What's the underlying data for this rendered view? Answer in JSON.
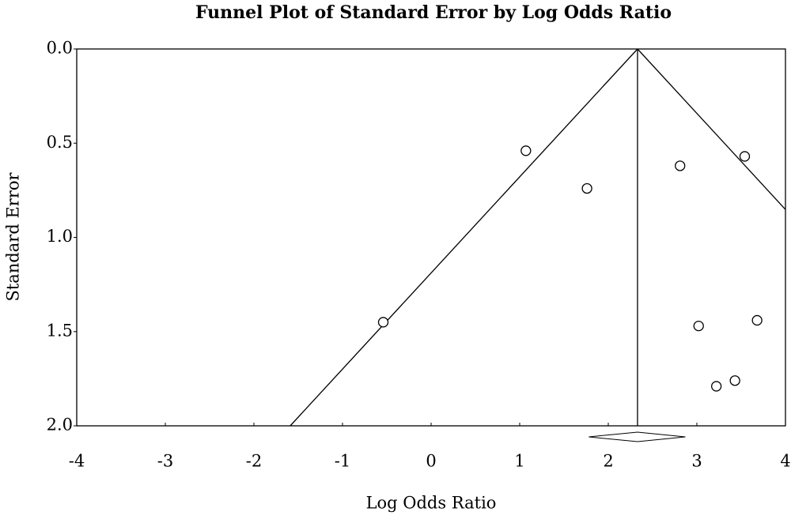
{
  "chart_data": {
    "type": "scatter",
    "title": "Funnel Plot of Standard Error by Log Odds Ratio",
    "x_label": "Log Odds Ratio",
    "y_label": "Standard Error",
    "x": [
      1.07,
      1.76,
      -0.54,
      2.81,
      3.54,
      3.02,
      3.68,
      3.22,
      3.43
    ],
    "values": [
      0.54,
      0.74,
      1.45,
      0.62,
      0.57,
      1.47,
      1.44,
      1.79,
      1.76
    ],
    "xlim": [
      -4,
      4
    ],
    "xticks": [
      -4,
      -3,
      -2,
      -1,
      0,
      1,
      2,
      3,
      4
    ],
    "ylim": [
      0,
      2
    ],
    "y_inverted": true,
    "yticks": [
      {
        "value": 0,
        "label": "0.0"
      },
      0.5,
      {
        "value": 1,
        "label": "1.0"
      },
      1.5,
      {
        "value": 2,
        "label": "2.0"
      }
    ],
    "funnel_z": 1.96,
    "summary": {
      "estimate": 2.33,
      "lower": 1.78,
      "upper": 2.87
    },
    "color": "#000000",
    "grid": false
  }
}
